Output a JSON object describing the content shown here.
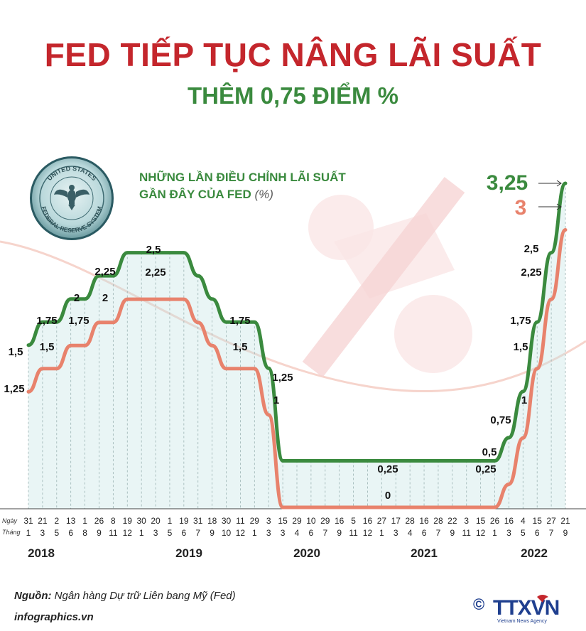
{
  "header": {
    "title": "FED TIẾP TỤC NÂNG LÃI SUẤT",
    "subtitle": "THÊM 0,75 ĐIỂM %"
  },
  "seal": {
    "text_top": "UNITED STATES",
    "text_bottom": "FEDERAL RESERVE SYSTEM"
  },
  "chart_title": {
    "line1": "NHỮNG LẦN ĐIỀU CHỈNH LÃI SUẤT",
    "line2": "GẦN ĐÂY CỦA FED",
    "unit": "(%)"
  },
  "colors": {
    "upper": "#3a8a3e",
    "lower": "#e8826c",
    "title": "#c4262c",
    "fill": "#bfe3e2"
  },
  "chart_data": {
    "type": "line",
    "day_label": "Ngày",
    "month_label": "Tháng",
    "dates": [
      [
        "31",
        "1"
      ],
      [
        "21",
        "3"
      ],
      [
        "2",
        "5"
      ],
      [
        "13",
        "6"
      ],
      [
        "1",
        "8"
      ],
      [
        "26",
        "9"
      ],
      [
        "8",
        "11"
      ],
      [
        "19",
        "12"
      ],
      [
        "30",
        "1"
      ],
      [
        "20",
        "3"
      ],
      [
        "1",
        "5"
      ],
      [
        "19",
        "6"
      ],
      [
        "31",
        "7"
      ],
      [
        "18",
        "9"
      ],
      [
        "30",
        "10"
      ],
      [
        "11",
        "12"
      ],
      [
        "29",
        "1"
      ],
      [
        "3",
        "3"
      ],
      [
        "15",
        "3"
      ],
      [
        "29",
        "4"
      ],
      [
        "10",
        "6"
      ],
      [
        "29",
        "7"
      ],
      [
        "16",
        "9"
      ],
      [
        "5",
        "11"
      ],
      [
        "16",
        "12"
      ],
      [
        "27",
        "1"
      ],
      [
        "17",
        "3"
      ],
      [
        "28",
        "4"
      ],
      [
        "16",
        "6"
      ],
      [
        "28",
        "7"
      ],
      [
        "22",
        "9"
      ],
      [
        "3",
        "11"
      ],
      [
        "15",
        "12"
      ],
      [
        "26",
        "1"
      ],
      [
        "16",
        "3"
      ],
      [
        "4",
        "5"
      ],
      [
        "15",
        "6"
      ],
      [
        "27",
        "7"
      ],
      [
        "21",
        "9"
      ]
    ],
    "years": [
      "2018",
      "2019",
      "2020",
      "2021",
      "2022"
    ],
    "series": [
      {
        "values": [
          1.5,
          1.75,
          1.75,
          2,
          2,
          2.25,
          2.25,
          2.5,
          2.5,
          2.5,
          2.5,
          2.5,
          2.25,
          2,
          1.75,
          1.75,
          1.75,
          1.25,
          0.25,
          0.25,
          0.25,
          0.25,
          0.25,
          0.25,
          0.25,
          0.25,
          0.25,
          0.25,
          0.25,
          0.25,
          0.25,
          0.25,
          0.25,
          0.25,
          0.5,
          1,
          1.75,
          2.5,
          3.25
        ]
      },
      {
        "values": [
          1.25,
          1.5,
          1.5,
          1.75,
          1.75,
          2,
          2,
          2.25,
          2.25,
          2.25,
          2.25,
          2.25,
          2,
          1.75,
          1.5,
          1.5,
          1.5,
          1,
          0,
          0,
          0,
          0,
          0,
          0,
          0,
          0,
          0,
          0,
          0,
          0,
          0,
          0,
          0,
          0,
          0.25,
          0.75,
          1.5,
          2.25,
          3
        ]
      }
    ],
    "labels": [
      {
        "text": "1,5"
      },
      {
        "text": "1,25"
      },
      {
        "text": "1,75"
      },
      {
        "text": "1,5"
      },
      {
        "text": "2"
      },
      {
        "text": "1,75"
      },
      {
        "text": "2,25"
      },
      {
        "text": "2"
      },
      {
        "text": "2,5"
      },
      {
        "text": "2,25"
      },
      {
        "text": "1,75"
      },
      {
        "text": "1,5"
      },
      {
        "text": "1,25"
      },
      {
        "text": "1"
      },
      {
        "text": "0,25"
      },
      {
        "text": "0"
      },
      {
        "text": "0,5"
      },
      {
        "text": "0,25"
      },
      {
        "text": "1"
      },
      {
        "text": "0,75"
      },
      {
        "text": "1,75"
      },
      {
        "text": "1,5"
      },
      {
        "text": "2,5"
      },
      {
        "text": "2,25"
      },
      {
        "text": "3,25"
      },
      {
        "text": "3"
      }
    ]
  },
  "footer": {
    "source_label": "Nguồn:",
    "source_text": "Ngân hàng Dự trữ Liên bang Mỹ (Fed)",
    "site": "infographics.vn",
    "logo_text": "TTXVN",
    "logo_sub": "Vietnam News Agency",
    "copyright": "©"
  }
}
